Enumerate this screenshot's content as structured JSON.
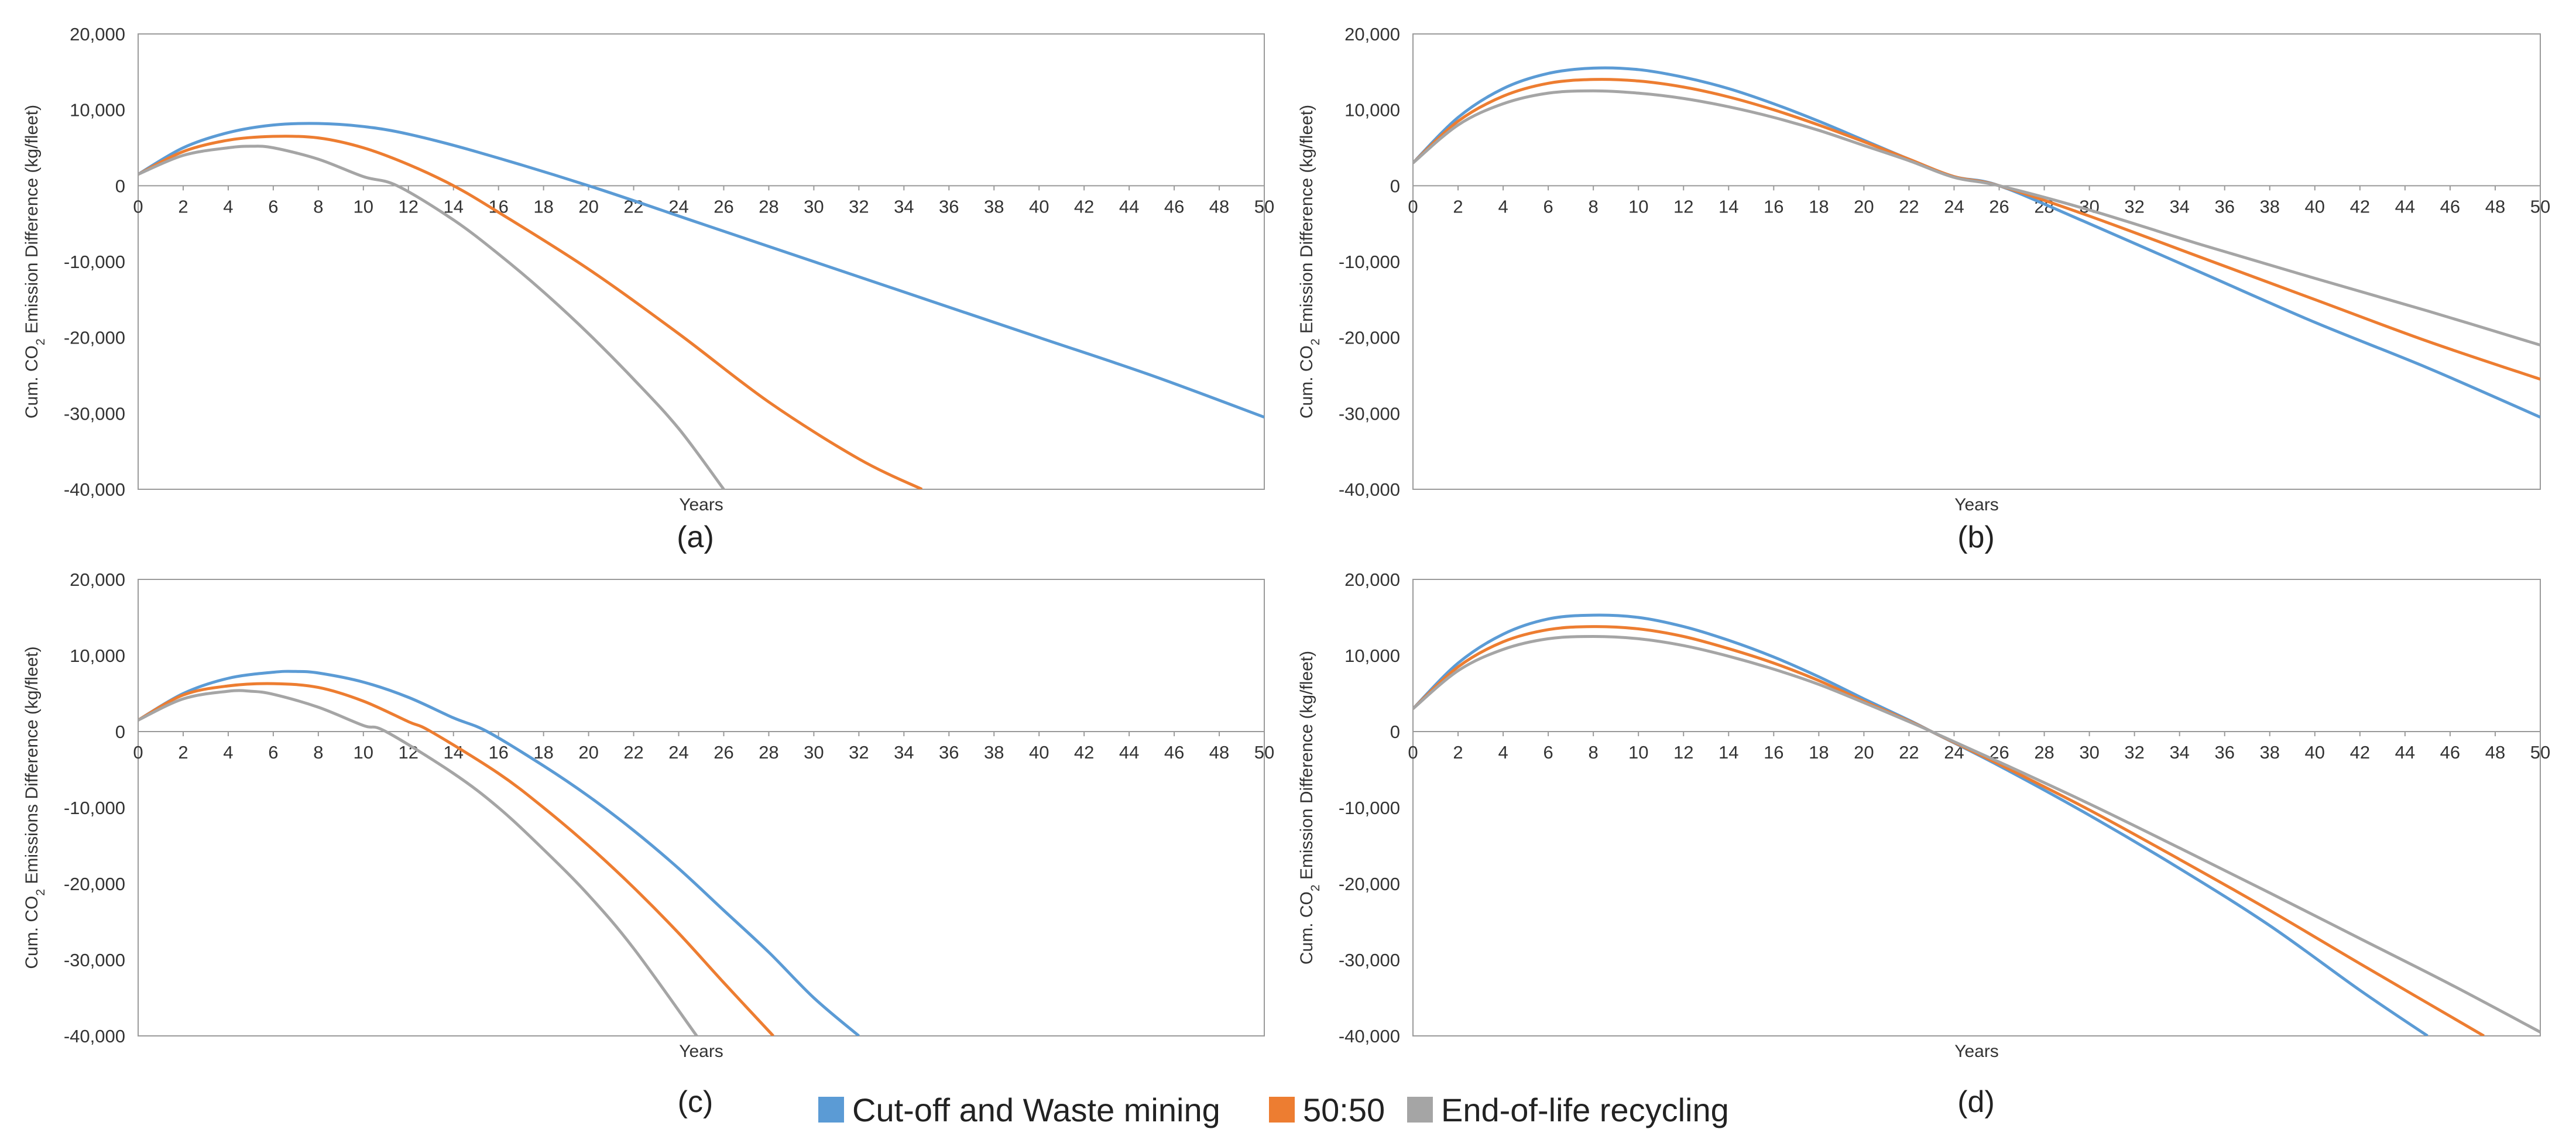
{
  "figure": {
    "legend": [
      {
        "name": "Cut-off and Waste mining",
        "color": "#5b9bd5"
      },
      {
        "name": "50:50",
        "color": "#ed7d31"
      },
      {
        "name": "End-of-life recycling",
        "color": "#a5a5a5"
      }
    ]
  },
  "chart_data": [
    {
      "id": "a",
      "panel_label": "(a)",
      "type": "line",
      "xlabel": "Years",
      "ylabel_parts": [
        "Cum. CO",
        "2",
        " Emission Difference (kg/fleet)"
      ],
      "xlim": [
        0,
        50
      ],
      "ylim": [
        -40000,
        20000
      ],
      "xticks": [
        0,
        2,
        4,
        6,
        8,
        10,
        12,
        14,
        16,
        18,
        20,
        22,
        24,
        26,
        28,
        30,
        32,
        34,
        36,
        38,
        40,
        42,
        44,
        46,
        48,
        50
      ],
      "yticks": [
        20000,
        10000,
        0,
        -10000,
        -20000,
        -30000,
        -40000
      ],
      "ytick_labels": [
        "20,000",
        "10,000",
        "0",
        "-10,000",
        "-20,000",
        "-30,000",
        "-40,000"
      ],
      "series": [
        {
          "name": "Cut-off and Waste mining",
          "color": "#5b9bd5",
          "x": [
            0,
            2,
            4,
            6,
            8,
            10,
            12,
            15,
            20,
            25,
            30,
            35,
            40,
            45,
            50
          ],
          "y": [
            1500,
            5000,
            7000,
            8000,
            8200,
            7800,
            6800,
            4500,
            0,
            -5000,
            -10000,
            -15000,
            -20000,
            -25000,
            -30500
          ]
        },
        {
          "name": "50:50",
          "color": "#ed7d31",
          "x": [
            0,
            2,
            4,
            6,
            8,
            10,
            12,
            14,
            16,
            20,
            24,
            28,
            32,
            34.8
          ],
          "y": [
            1500,
            4500,
            6000,
            6500,
            6300,
            5000,
            2800,
            0,
            -3500,
            -11000,
            -19500,
            -28500,
            -36000,
            -40000
          ]
        },
        {
          "name": "End-of-life recycling",
          "color": "#a5a5a5",
          "x": [
            0,
            2,
            4,
            5,
            6,
            8,
            10,
            11.5,
            14,
            16,
            18,
            20,
            22,
            24,
            26
          ],
          "y": [
            1500,
            4000,
            5000,
            5200,
            5000,
            3500,
            1200,
            0,
            -4500,
            -9000,
            -14000,
            -19500,
            -25500,
            -32000,
            -40000
          ]
        }
      ]
    },
    {
      "id": "b",
      "panel_label": "(b)",
      "type": "line",
      "xlabel": "Years",
      "ylabel_parts": [
        "Cum. CO",
        "2",
        " Emission Difference (kg/fleet)"
      ],
      "xlim": [
        0,
        50
      ],
      "ylim": [
        -40000,
        20000
      ],
      "xticks": [
        0,
        2,
        4,
        6,
        8,
        10,
        12,
        14,
        16,
        18,
        20,
        22,
        24,
        26,
        28,
        30,
        32,
        34,
        36,
        38,
        40,
        42,
        44,
        46,
        48,
        50
      ],
      "yticks": [
        20000,
        10000,
        0,
        -10000,
        -20000,
        -30000,
        -40000
      ],
      "ytick_labels": [
        "20,000",
        "10,000",
        "0",
        "-10,000",
        "-20,000",
        "-30,000",
        "-40,000"
      ],
      "series": [
        {
          "name": "Cut-off and Waste mining",
          "color": "#5b9bd5",
          "x": [
            0,
            2,
            4,
            6,
            8,
            10,
            12,
            14,
            16,
            18,
            20,
            22,
            24,
            26,
            30,
            35,
            40,
            45,
            50
          ],
          "y": [
            3000,
            9000,
            12800,
            14800,
            15500,
            15300,
            14300,
            12800,
            10800,
            8500,
            6000,
            3500,
            1200,
            0,
            -5000,
            -11500,
            -18000,
            -24000,
            -30500
          ]
        },
        {
          "name": "50:50",
          "color": "#ed7d31",
          "x": [
            0,
            2,
            4,
            6,
            8,
            10,
            12,
            14,
            16,
            18,
            20,
            22,
            24,
            26,
            30,
            35,
            40,
            45,
            50
          ],
          "y": [
            3000,
            8500,
            11800,
            13500,
            14000,
            13800,
            13000,
            11700,
            10000,
            8000,
            5800,
            3500,
            1200,
            0,
            -4000,
            -9500,
            -15000,
            -20500,
            -25500
          ]
        },
        {
          "name": "End-of-life recycling",
          "color": "#a5a5a5",
          "x": [
            0,
            2,
            4,
            6,
            8,
            10,
            12,
            14,
            16,
            18,
            20,
            22,
            24,
            26,
            30,
            35,
            40,
            45,
            50
          ],
          "y": [
            3000,
            8000,
            10800,
            12200,
            12500,
            12200,
            11500,
            10400,
            9000,
            7300,
            5300,
            3300,
            1100,
            0,
            -3200,
            -7800,
            -12200,
            -16500,
            -21000
          ]
        }
      ]
    },
    {
      "id": "c",
      "panel_label": "(c)",
      "type": "line",
      "xlabel": "Years",
      "ylabel_parts": [
        "Cum. CO",
        "2",
        " Emissions Difference (kg/fleet)"
      ],
      "xlim": [
        0,
        50
      ],
      "ylim": [
        -40000,
        20000
      ],
      "xticks": [
        0,
        2,
        4,
        6,
        8,
        10,
        12,
        14,
        16,
        18,
        20,
        22,
        24,
        26,
        28,
        30,
        32,
        34,
        36,
        38,
        40,
        42,
        44,
        46,
        48,
        50
      ],
      "yticks": [
        20000,
        10000,
        0,
        -10000,
        -20000,
        -30000,
        -40000
      ],
      "ytick_labels": [
        "20,000",
        "10,000",
        "0",
        "-10,000",
        "-20,000",
        "-30,000",
        "-40,000"
      ],
      "series": [
        {
          "name": "Cut-off and Waste mining",
          "color": "#5b9bd5",
          "x": [
            0,
            2,
            4,
            6,
            7,
            8,
            10,
            12,
            14,
            15.5,
            18,
            20,
            22,
            24,
            26,
            28,
            30,
            32
          ],
          "y": [
            1500,
            5000,
            7000,
            7800,
            7900,
            7700,
            6500,
            4500,
            1800,
            0,
            -4500,
            -8500,
            -13000,
            -18000,
            -23500,
            -29000,
            -35000,
            -40000
          ]
        },
        {
          "name": "50:50",
          "color": "#ed7d31",
          "x": [
            0,
            2,
            4,
            6,
            8,
            10,
            12,
            13,
            16,
            18,
            20,
            22,
            24,
            26,
            28.2
          ],
          "y": [
            1500,
            4800,
            6000,
            6300,
            5800,
            4000,
            1300,
            0,
            -5500,
            -10000,
            -15000,
            -20500,
            -26500,
            -33000,
            -40000
          ]
        },
        {
          "name": "End-of-life recycling",
          "color": "#a5a5a5",
          "x": [
            0,
            2,
            4,
            5,
            6,
            8,
            10,
            11,
            14,
            16,
            18,
            20,
            22,
            24.8
          ],
          "y": [
            1500,
            4300,
            5300,
            5300,
            4900,
            3200,
            800,
            0,
            -5500,
            -10000,
            -15500,
            -21500,
            -28500,
            -40000
          ]
        }
      ]
    },
    {
      "id": "d",
      "panel_label": "(d)",
      "type": "line",
      "xlabel": "Years",
      "ylabel_parts": [
        "Cum. CO",
        "2",
        " Emission Difference (kg/fleet)"
      ],
      "xlim": [
        0,
        50
      ],
      "ylim": [
        -40000,
        20000
      ],
      "xticks": [
        0,
        2,
        4,
        6,
        8,
        10,
        12,
        14,
        16,
        18,
        20,
        22,
        24,
        26,
        28,
        30,
        32,
        34,
        36,
        38,
        40,
        42,
        44,
        46,
        48,
        50
      ],
      "yticks": [
        20000,
        10000,
        0,
        -10000,
        -20000,
        -30000,
        -40000
      ],
      "ytick_labels": [
        "20,000",
        "10,000",
        "0",
        "-10,000",
        "-20,000",
        "-30,000",
        "-40,000"
      ],
      "series": [
        {
          "name": "Cut-off and Waste mining",
          "color": "#5b9bd5",
          "x": [
            0,
            2,
            4,
            6,
            8,
            10,
            12,
            14,
            16,
            18,
            20,
            22,
            23,
            26,
            30,
            34,
            38,
            42,
            45
          ],
          "y": [
            3000,
            9000,
            12800,
            14800,
            15300,
            15000,
            13800,
            12000,
            9800,
            7200,
            4300,
            1500,
            0,
            -4500,
            -11000,
            -18000,
            -25500,
            -34000,
            -40000
          ]
        },
        {
          "name": "50:50",
          "color": "#ed7d31",
          "x": [
            0,
            2,
            4,
            6,
            8,
            10,
            12,
            14,
            16,
            18,
            20,
            22,
            23,
            26,
            30,
            34,
            38,
            42,
            47.5
          ],
          "y": [
            3000,
            8500,
            11800,
            13400,
            13800,
            13500,
            12500,
            10900,
            9000,
            6700,
            4000,
            1400,
            0,
            -4300,
            -10300,
            -16800,
            -23500,
            -30500,
            -40000
          ]
        },
        {
          "name": "End-of-life recycling",
          "color": "#a5a5a5",
          "x": [
            0,
            2,
            4,
            6,
            8,
            10,
            12,
            14,
            16,
            18,
            20,
            22,
            23,
            26,
            30,
            34,
            38,
            42,
            46,
            50
          ],
          "y": [
            3000,
            8000,
            10800,
            12200,
            12500,
            12200,
            11300,
            9900,
            8200,
            6200,
            3800,
            1300,
            0,
            -4000,
            -9500,
            -15300,
            -21200,
            -27200,
            -33200,
            -39500
          ]
        }
      ]
    }
  ]
}
